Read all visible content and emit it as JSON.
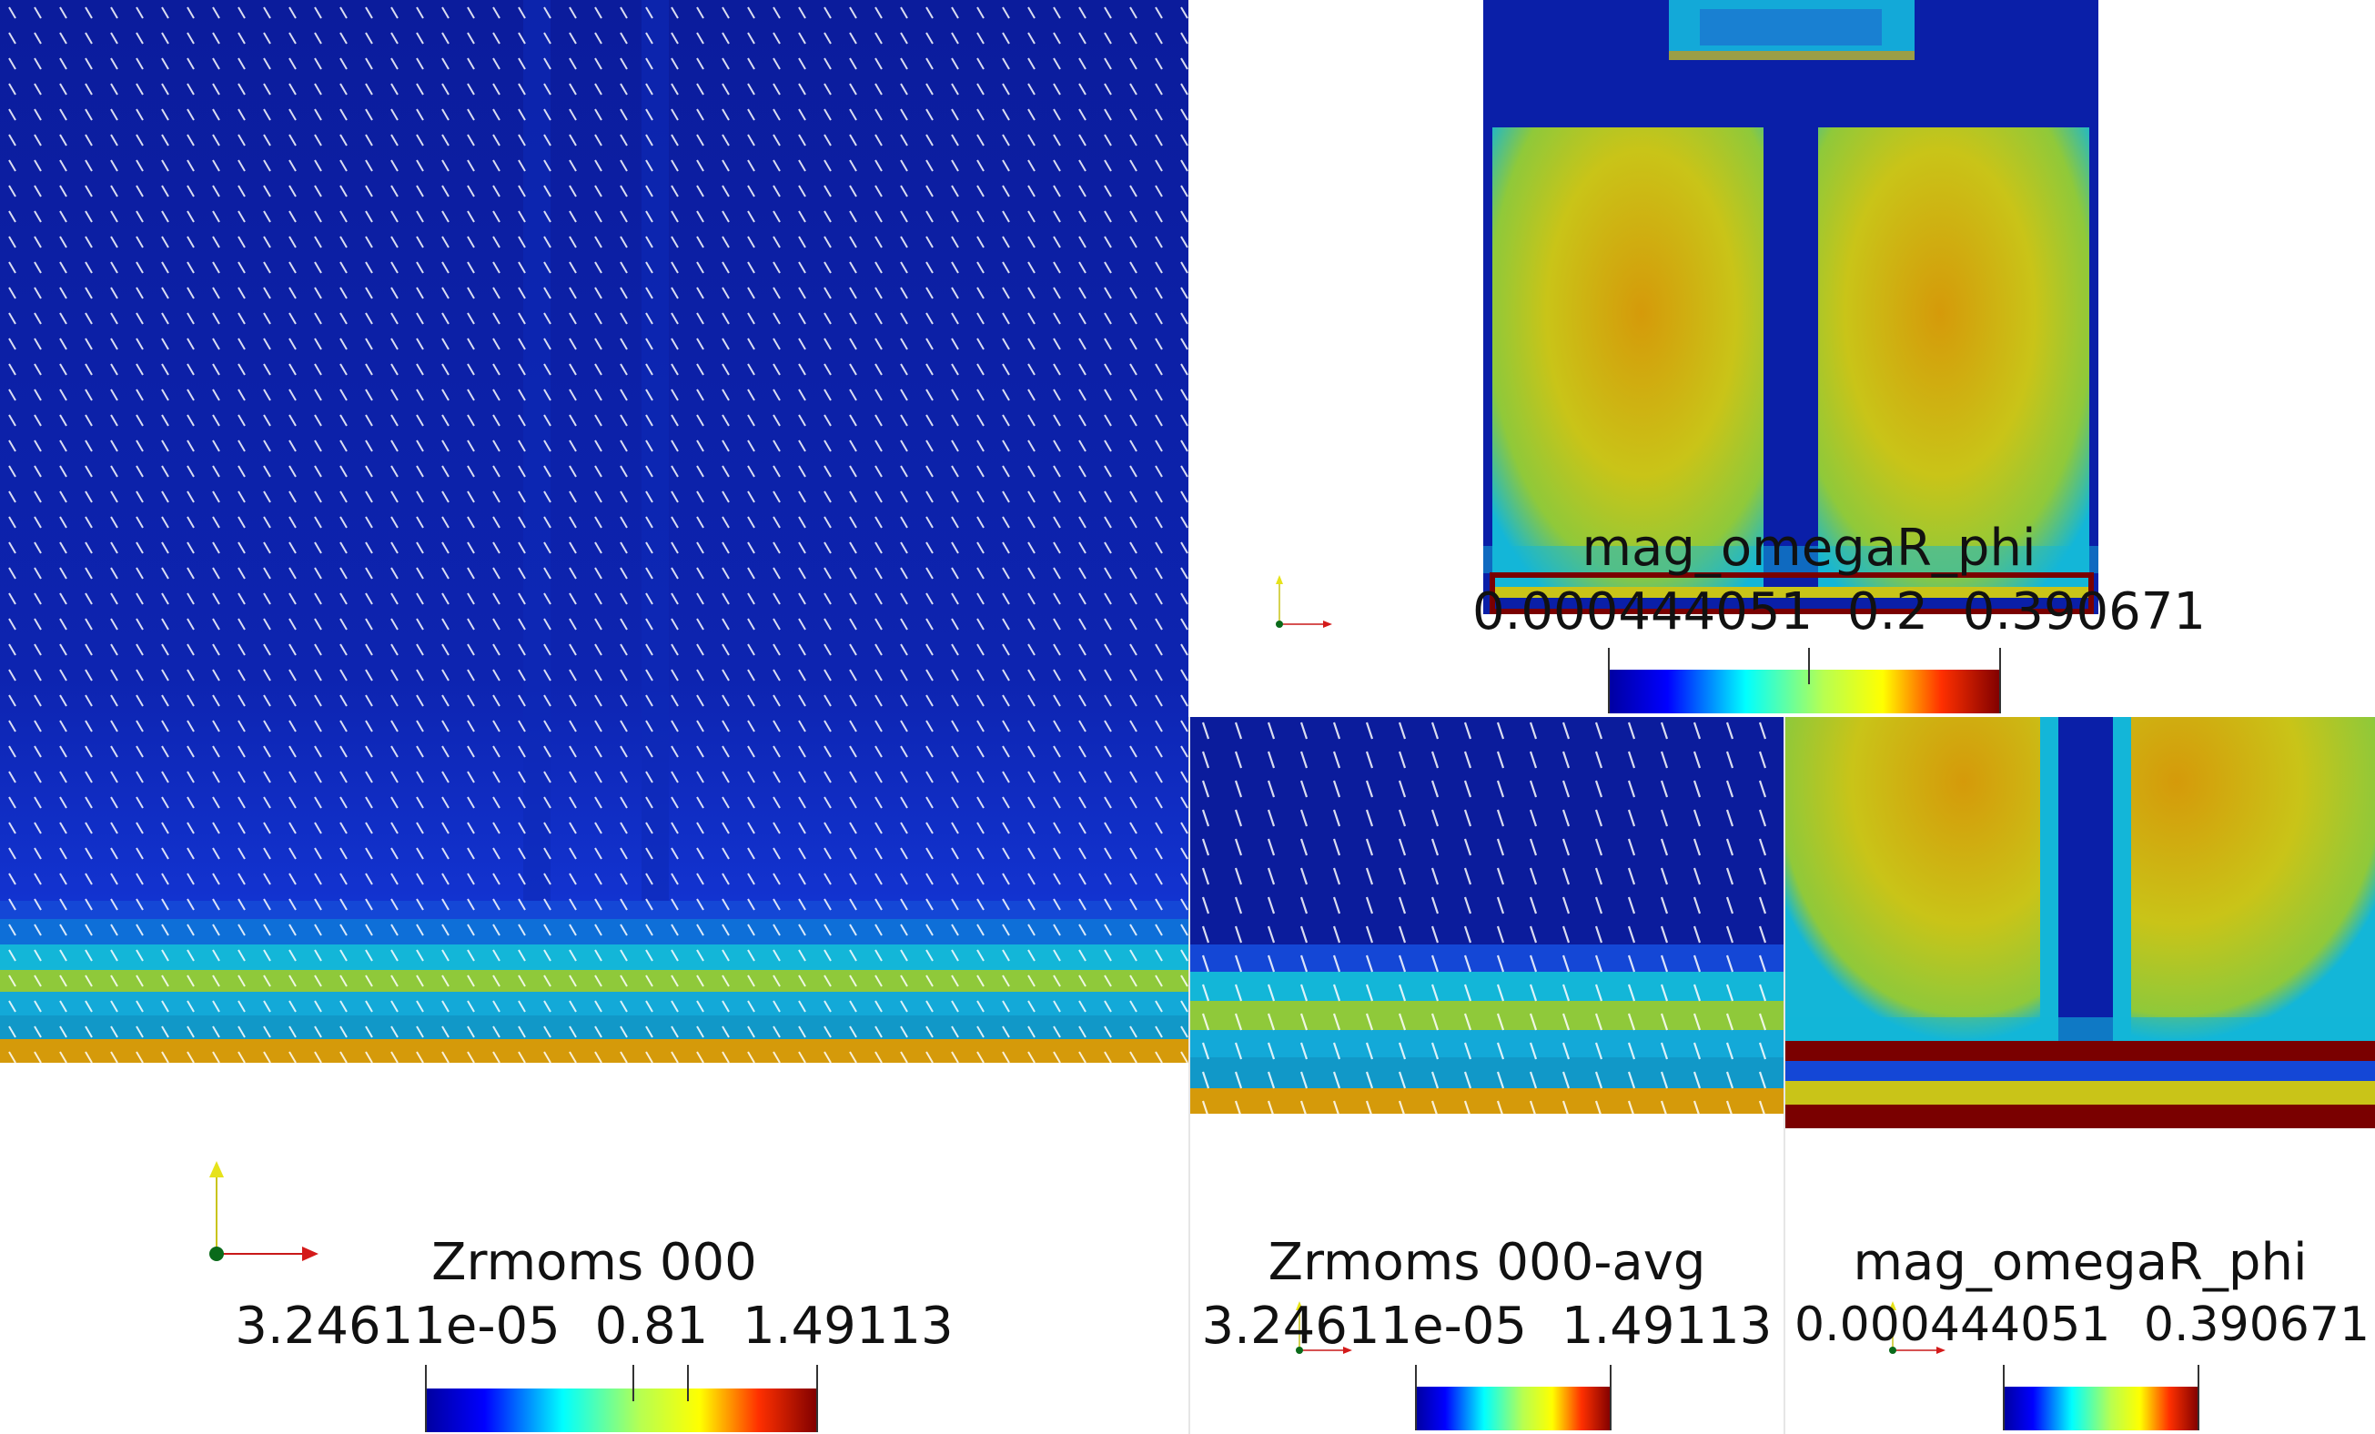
{
  "views": [
    {
      "id": "main",
      "field": "Zrmoms 000",
      "colorbar": {
        "min_label": "3.24611e-05",
        "mid_label": "0.81",
        "max_label": "1.49113"
      }
    },
    {
      "id": "top-right",
      "field": "mag_omegaR_phi",
      "colorbar": {
        "min_label": "0.000444051",
        "mid_label": "0.2",
        "max_label": "0.390671"
      }
    },
    {
      "id": "bottom-mid",
      "field": "Zrmoms 000-avg",
      "colorbar": {
        "min_label": "3.24611e-05",
        "max_label": "1.49113"
      }
    },
    {
      "id": "bottom-right",
      "field": "mag_omegaR_phi",
      "colorbar": {
        "min_label": "0.000444051",
        "max_label": "0.390671"
      }
    }
  ],
  "colors": {
    "deep_blue": "#0a1fa8",
    "cyan": "#13b6d8",
    "light_green": "#8fc93a",
    "yellow": "#c9c418",
    "orange": "#d59a0a",
    "dark_red": "#7a0000"
  },
  "icons": [
    "axes-orientation-icon"
  ]
}
